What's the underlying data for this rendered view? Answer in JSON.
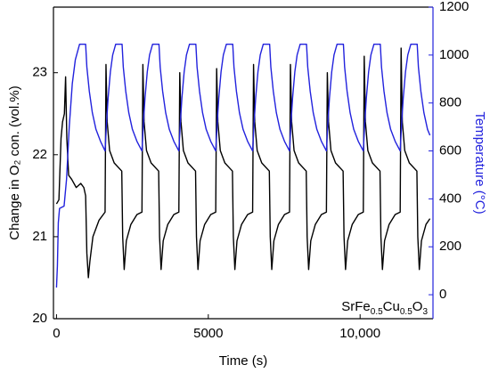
{
  "chart_data": {
    "type": "line",
    "xlabel": "Time (s)",
    "ylabel": "Change in O₂ con. (vol.%)",
    "y2label": "Temperature (°C)",
    "annotation": [
      {
        "text": "SrFe",
        "sub": false
      },
      {
        "text": "0.5",
        "sub": true
      },
      {
        "text": "Cu",
        "sub": false
      },
      {
        "text": "0.5",
        "sub": true
      },
      {
        "text": "O",
        "sub": false
      },
      {
        "text": "3",
        "sub": true
      }
    ],
    "xlim": [
      -100,
      12400
    ],
    "xticks": [
      0,
      5000,
      {
        "value": 10000,
        "label": "10,000"
      }
    ],
    "ylim": [
      20,
      23.8
    ],
    "yticks": [
      20,
      21,
      22,
      23
    ],
    "y2lim": [
      -100,
      1200
    ],
    "y2ticks": [
      0,
      200,
      400,
      600,
      800,
      1000,
      1200
    ],
    "y2color": "#2222dd",
    "series": [
      {
        "color": "#000000",
        "axis": "y",
        "x": [
          0,
          80,
          150,
          200,
          260,
          300,
          340,
          400,
          500,
          650,
          800,
          900,
          960,
          1000,
          1050,
          1100,
          1200,
          1400,
          1600,
          1630,
          1670,
          1750,
          1900,
          2150,
          2180,
          2230,
          2300,
          2450,
          2650,
          2815,
          2845,
          2885,
          2965,
          3115,
          3365,
          3395,
          3445,
          3515,
          3665,
          3865,
          4030,
          4060,
          4100,
          4180,
          4330,
          4580,
          4610,
          4660,
          4730,
          4880,
          5080,
          5245,
          5275,
          5315,
          5395,
          5545,
          5795,
          5825,
          5875,
          5945,
          6095,
          6295,
          6460,
          6490,
          6530,
          6610,
          6760,
          7010,
          7040,
          7090,
          7160,
          7310,
          7510,
          7675,
          7705,
          7745,
          7825,
          7975,
          8225,
          8255,
          8305,
          8375,
          8525,
          8725,
          8890,
          8920,
          8960,
          9040,
          9190,
          9440,
          9470,
          9520,
          9590,
          9740,
          9940,
          10105,
          10135,
          10175,
          10255,
          10405,
          10655,
          10685,
          10735,
          10805,
          10955,
          11155,
          11320,
          11350,
          11390,
          11470,
          11620,
          11870,
          11900,
          11950,
          12020,
          12170,
          12300
        ],
        "values": [
          21.4,
          21.45,
          22.2,
          22.4,
          22.5,
          22.95,
          22.2,
          21.75,
          21.7,
          21.6,
          21.65,
          21.6,
          21.5,
          20.8,
          20.5,
          20.7,
          21.0,
          21.2,
          21.3,
          23.1,
          22.4,
          22.05,
          21.9,
          21.8,
          21.0,
          20.6,
          20.95,
          21.15,
          21.27,
          21.3,
          23.1,
          22.4,
          22.05,
          21.9,
          21.8,
          21.0,
          20.6,
          20.95,
          21.15,
          21.27,
          21.3,
          23.0,
          22.4,
          22.05,
          21.9,
          21.8,
          21.0,
          20.6,
          20.95,
          21.15,
          21.27,
          21.3,
          23.05,
          22.4,
          22.05,
          21.9,
          21.8,
          21.0,
          20.6,
          20.95,
          21.15,
          21.27,
          21.3,
          23.1,
          22.4,
          22.05,
          21.9,
          21.8,
          21.0,
          20.6,
          20.95,
          21.15,
          21.27,
          21.3,
          23.1,
          22.4,
          22.05,
          21.9,
          21.8,
          21.0,
          20.6,
          20.95,
          21.15,
          21.27,
          21.3,
          23.0,
          22.4,
          22.05,
          21.9,
          21.8,
          21.0,
          20.6,
          20.95,
          21.15,
          21.27,
          21.3,
          23.2,
          22.4,
          22.05,
          21.9,
          21.8,
          21.0,
          20.6,
          20.95,
          21.15,
          21.27,
          21.3,
          23.3,
          22.4,
          22.05,
          21.9,
          21.8,
          21.0,
          20.6,
          20.95,
          21.15,
          21.22
        ]
      },
      {
        "color": "#2222dd",
        "axis": "y2",
        "x": [
          0,
          30,
          60,
          100,
          250,
          330,
          420,
          520,
          620,
          760,
          960,
          1000,
          1080,
          1180,
          1300,
          1450,
          1600,
          1650,
          1700,
          1775,
          1850,
          1950,
          2160,
          2200,
          2280,
          2380,
          2500,
          2650,
          2815,
          2865,
          2915,
          2990,
          3065,
          3165,
          3375,
          3415,
          3495,
          3595,
          3715,
          3865,
          4030,
          4080,
          4130,
          4205,
          4280,
          4380,
          4590,
          4630,
          4710,
          4810,
          4930,
          5080,
          5245,
          5295,
          5345,
          5420,
          5495,
          5595,
          5805,
          5845,
          5925,
          6025,
          6145,
          6295,
          6460,
          6510,
          6560,
          6635,
          6710,
          6810,
          7020,
          7060,
          7140,
          7240,
          7360,
          7510,
          7675,
          7725,
          7775,
          7850,
          7925,
          8025,
          8235,
          8275,
          8355,
          8455,
          8575,
          8725,
          8890,
          8940,
          8990,
          9065,
          9140,
          9240,
          9450,
          9490,
          9570,
          9670,
          9790,
          9940,
          10105,
          10155,
          10205,
          10280,
          10355,
          10455,
          10665,
          10705,
          10785,
          10885,
          11005,
          11155,
          11320,
          11370,
          11420,
          11495,
          11570,
          11670,
          11880,
          11920,
          12000,
          12100,
          12220,
          12300
        ],
        "values": [
          30,
          120,
          300,
          360,
          370,
          480,
          700,
          880,
          980,
          1045,
          1045,
          950,
          850,
          760,
          690,
          640,
          600,
          720,
          820,
          930,
          1000,
          1045,
          1045,
          950,
          850,
          760,
          690,
          640,
          600,
          720,
          820,
          930,
          1000,
          1045,
          1045,
          950,
          850,
          760,
          690,
          640,
          600,
          720,
          820,
          930,
          1000,
          1045,
          1045,
          950,
          850,
          760,
          690,
          640,
          600,
          720,
          820,
          930,
          1000,
          1045,
          1045,
          950,
          850,
          760,
          690,
          640,
          600,
          720,
          820,
          930,
          1000,
          1045,
          1045,
          950,
          850,
          760,
          690,
          640,
          600,
          720,
          820,
          930,
          1000,
          1045,
          1045,
          950,
          850,
          760,
          690,
          640,
          600,
          720,
          820,
          930,
          1000,
          1045,
          1045,
          950,
          850,
          760,
          690,
          640,
          600,
          720,
          820,
          930,
          1000,
          1045,
          1045,
          950,
          850,
          760,
          690,
          640,
          600,
          720,
          820,
          930,
          1000,
          1045,
          1045,
          950,
          850,
          760,
          690,
          665
        ]
      }
    ]
  }
}
